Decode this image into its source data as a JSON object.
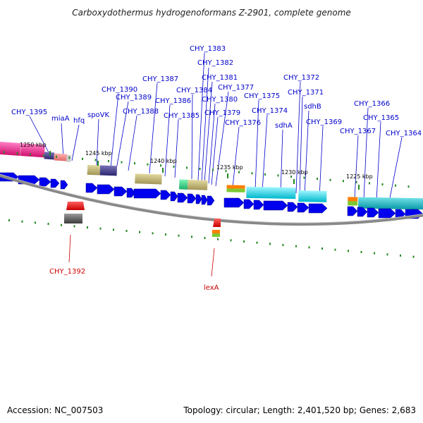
{
  "title": "Carboxydothermus hydrogenoformans Z-2901, complete genome",
  "footer": {
    "accession": "Accession: NC_007503",
    "info": "Topology: circular; Length: 2,401,520 bp; Genes: 2,683"
  },
  "colors": {
    "forward_label": "#0000cc",
    "reverse_label": "#cc0000",
    "gene_arrow": "#0000ee",
    "reverse_gene": "#ee0000",
    "backbone": "#888888",
    "tick": "#228822"
  },
  "kbp_labels": [
    "1250 kbp",
    "1245 kbp",
    "1240 kbp",
    "1235 kbp",
    "1230 kbp",
    "1225 kbp"
  ],
  "forward_labels": [
    "CHY_1395",
    "miaA",
    "hfq",
    "spoVK",
    "CHY_1390",
    "CHY_1389",
    "CHY_1388",
    "CHY_1387",
    "CHY_1386",
    "CHY_1385",
    "CHY_1384",
    "CHY_1383",
    "CHY_1382",
    "CHY_1381",
    "CHY_1380",
    "CHY_1379",
    "CHY_1377",
    "CHY_1376",
    "CHY_1375",
    "CHY_1374",
    "CHY_1372",
    "sdhA",
    "CHY_1371",
    "sdhB",
    "CHY_1369",
    "CHY_1367",
    "CHY_1366",
    "CHY_1365",
    "CHY_1364"
  ],
  "reverse_labels": [
    "CHY_1392",
    "lexA"
  ]
}
